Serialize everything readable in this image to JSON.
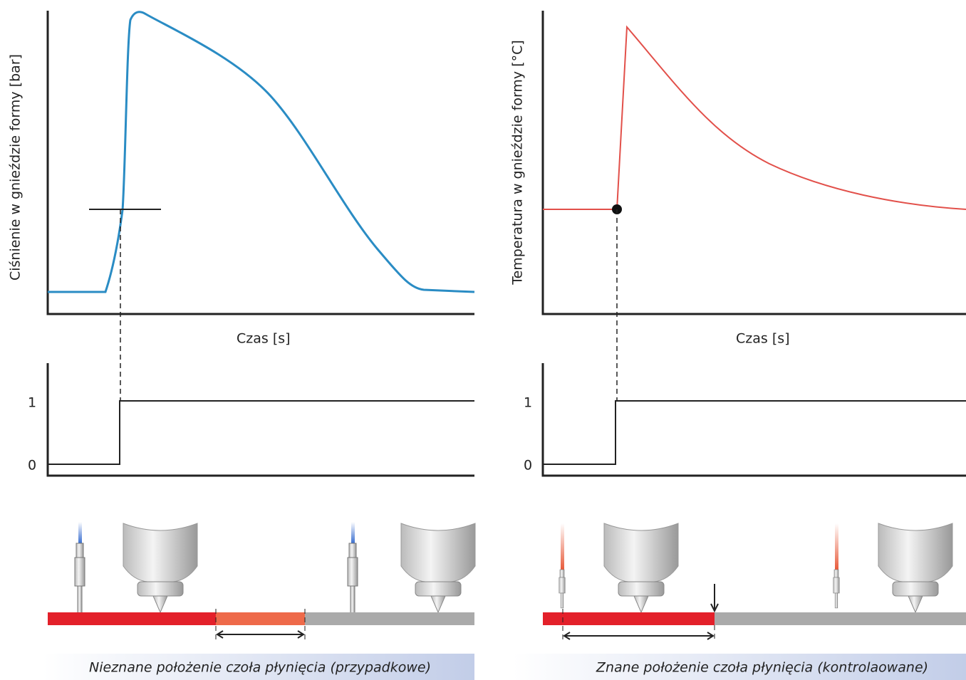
{
  "left": {
    "y_label": "Ciśnienie w gnieździe formy [bar]",
    "x_label": "Czas [s]",
    "signal_ticks": [
      "1",
      "0"
    ],
    "caption": "Nieznane położenie czoła płynięcia (przypadkowe)"
  },
  "right": {
    "y_label": "Temperatura w gnieździe formy [°C]",
    "x_label": "Czas [s]",
    "signal_ticks": [
      "1",
      "0"
    ],
    "caption": "Znane położenie czoła płynięcia (kontrolaowane)"
  }
}
